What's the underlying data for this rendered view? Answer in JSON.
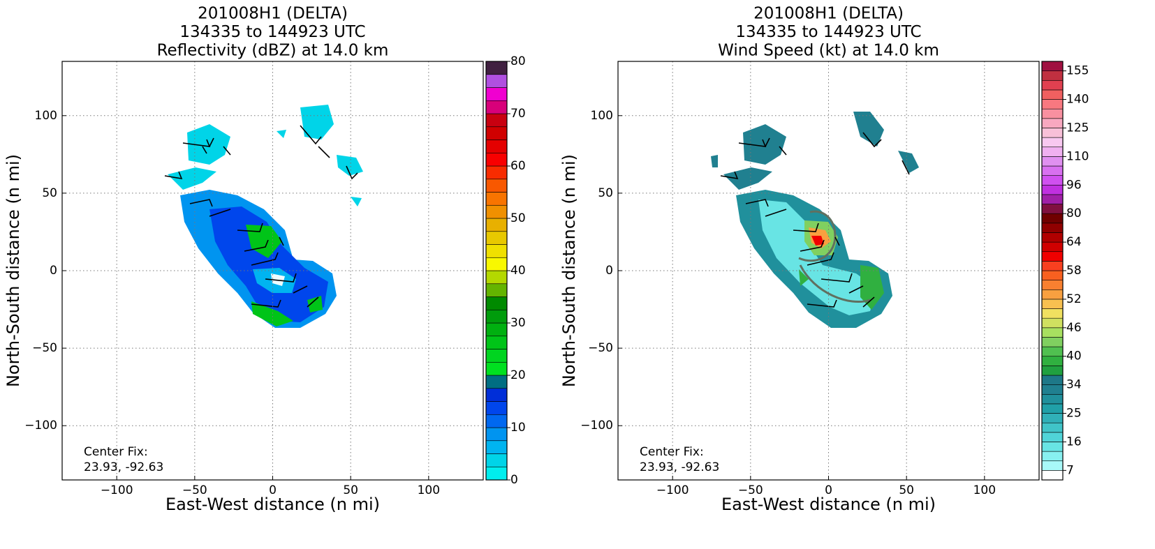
{
  "chart_data": [
    {
      "type": "radar_field",
      "title": [
        "201008H1 (DELTA)",
        "134335 to 144923 UTC",
        "Reflectivity (dBZ) at 14.0 km"
      ],
      "xlabel": "East-West distance (n mi)",
      "ylabel": "North-South distance (n mi)",
      "xlim": [
        -135,
        135
      ],
      "ylim": [
        -135,
        135
      ],
      "xticks": [
        {
          "value": -100,
          "label": "−100"
        },
        {
          "value": -50,
          "label": "−50"
        },
        0,
        50,
        100
      ],
      "yticks": [
        {
          "value": -100,
          "label": "−100"
        },
        {
          "value": -50,
          "label": "−50"
        },
        0,
        50,
        100
      ],
      "grid": true,
      "annotation": [
        "Center Fix:",
        "23.93, -92.63"
      ],
      "colorbar": {
        "lim": [
          0,
          80
        ],
        "ticks": [
          0,
          10,
          20,
          30,
          40,
          50,
          60,
          70,
          80
        ],
        "colors": [
          "#00eeee",
          "#00d4e8",
          "#00b4f0",
          "#0094f0",
          "#0068f0",
          "#0046ec",
          "#002ed8",
          "#006e82",
          "#00e020",
          "#00d420",
          "#00c418",
          "#00b010",
          "#009c0c",
          "#008a00",
          "#64b400",
          "#b4d800",
          "#f8f800",
          "#f0e000",
          "#e8c800",
          "#e8b000",
          "#f09000",
          "#f87400",
          "#f85800",
          "#f82c00",
          "#f80000",
          "#e40000",
          "#d00000",
          "#c80010",
          "#d8007a",
          "#f000d0",
          "#b050e0",
          "#402040"
        ]
      }
    },
    {
      "type": "radar_field",
      "title": [
        "201008H1 (DELTA)",
        "134335 to 144923 UTC",
        "Wind Speed (kt) at 14.0 km"
      ],
      "xlabel": "East-West distance (n mi)",
      "ylabel": "North-South distance (n mi)",
      "xlim": [
        -135,
        135
      ],
      "ylim": [
        -135,
        135
      ],
      "xticks": [
        {
          "value": -100,
          "label": "−100"
        },
        {
          "value": -50,
          "label": "−50"
        },
        0,
        50,
        100
      ],
      "yticks": [
        {
          "value": -100,
          "label": "−100"
        },
        {
          "value": -50,
          "label": "−50"
        },
        0,
        50,
        100
      ],
      "grid": true,
      "annotation": [
        "Center Fix:",
        "23.93, -92.63"
      ],
      "colorbar": {
        "ticks": [
          7,
          16,
          25,
          34,
          40,
          46,
          52,
          58,
          64,
          80,
          96,
          110,
          125,
          140,
          155
        ],
        "colors": [
          "#ffffff",
          "#a8f8f8",
          "#88f0f0",
          "#68e4e4",
          "#50d4d8",
          "#40c4c8",
          "#30b0b8",
          "#20a0a8",
          "#20909c",
          "#208090",
          "#1e7888",
          "#20a040",
          "#30b040",
          "#50c050",
          "#80d060",
          "#a8e060",
          "#d0e060",
          "#f0e060",
          "#f8c050",
          "#f8a040",
          "#f88030",
          "#f86020",
          "#f84020",
          "#f00000",
          "#d00000",
          "#b00000",
          "#900000",
          "#700000",
          "#801040",
          "#a020a8",
          "#c030e0",
          "#d050f0",
          "#d870f0",
          "#e090f0",
          "#f0b0f0",
          "#f8c8f0",
          "#f8c0d8",
          "#f8a8c0",
          "#f890a0",
          "#f87880",
          "#f06060",
          "#e04050",
          "#c03040",
          "#a01040"
        ]
      }
    }
  ]
}
